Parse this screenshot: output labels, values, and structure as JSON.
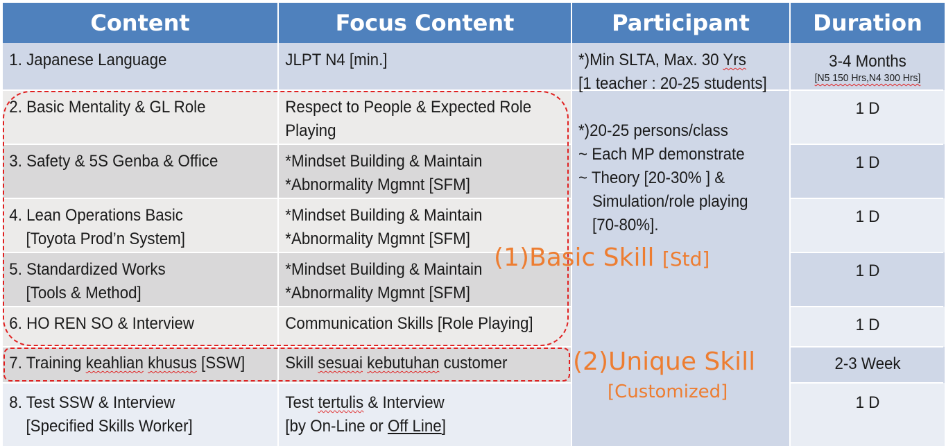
{
  "headers": {
    "content": "Content",
    "focus": "Focus Content",
    "participant": "Participant",
    "duration": "Duration"
  },
  "rows": [
    {
      "content_l1": "1. Japanese Language",
      "content_l2": "",
      "focus_l1": "JLPT N4 [min.]",
      "focus_l2": "",
      "duration": "3-4 Months",
      "duration_note": "[N5 150 Hrs,N4 300 Hrs]"
    },
    {
      "content_l1": "2. Basic Mentality & GL Role",
      "content_l2": "",
      "focus_l1": "Respect to People & Expected Role",
      "focus_l2": "Playing",
      "duration": "1 D",
      "duration_note": ""
    },
    {
      "content_l1": "3. Safety & 5S Genba & Office",
      "content_l2": "",
      "focus_l1": "*Mindset Building & Maintain",
      "focus_l2": "*Abnormality Mgmnt [SFM]",
      "duration": "1 D",
      "duration_note": ""
    },
    {
      "content_l1": "4. Lean Operations Basic",
      "content_l2": "[Toyota Prod’n System]",
      "focus_l1": "*Mindset Building & Maintain",
      "focus_l2": "*Abnormality Mgmnt [SFM]",
      "duration": "1 D",
      "duration_note": ""
    },
    {
      "content_l1": "5. Standardized Works",
      "content_l2": "[Tools & Method]",
      "focus_l1": "*Mindset Building & Maintain",
      "focus_l2": "*Abnormality Mgmnt [SFM]",
      "duration": "1 D",
      "duration_note": ""
    },
    {
      "content_l1": "6. HO REN SO & Interview",
      "content_l2": "",
      "focus_l1": "Communication Skills [Role Playing]",
      "focus_l2": "",
      "duration": "1 D",
      "duration_note": ""
    },
    {
      "content_pre": "7. Training ",
      "content_w1": "keahlian",
      "content_mid": " ",
      "content_w2": "khusus",
      "content_post": " [SSW]",
      "focus_pre": "Skill ",
      "focus_w1": "sesuai",
      "focus_mid": " ",
      "focus_w2": "kebutuhan",
      "focus_post": " customer",
      "duration": "2-3 Week",
      "duration_note": ""
    },
    {
      "content_l1": "8. Test SSW & Interview",
      "content_l2": "[Specified Skills Worker]",
      "focus_pre": "Test ",
      "focus_w1": "tertulis",
      "focus_post": " & Interview",
      "focus_l2_pre": "[by On-Line or ",
      "focus_l2_w": "Off Line",
      "focus_l2_post": "]",
      "duration": "1 D",
      "duration_note": ""
    }
  ],
  "participant": {
    "l1_pre": "*)Min SLTA, Max. 30 ",
    "l1_w": "Yrs",
    "l2": "[1 teacher : 20-25 students]",
    "l3": "*)20-25 persons/class",
    "l4": "~ Each MP demonstrate",
    "l5": "~ Theory [20-30% ] &",
    "l6": "Simulation/role playing",
    "l7": "[70-80%]."
  },
  "labels": {
    "basic_main": "(1)Basic Skill",
    "basic_sub": "[Std]",
    "unique_main": "(2)Unique Skill",
    "unique_sub": "[Customized]"
  },
  "colors": {
    "header": "#4f81bd",
    "row_dark": "#cfd7e7",
    "row_light": "#e9edf4",
    "accent_orange": "#ed7d31",
    "dash_red": "#e02020"
  }
}
